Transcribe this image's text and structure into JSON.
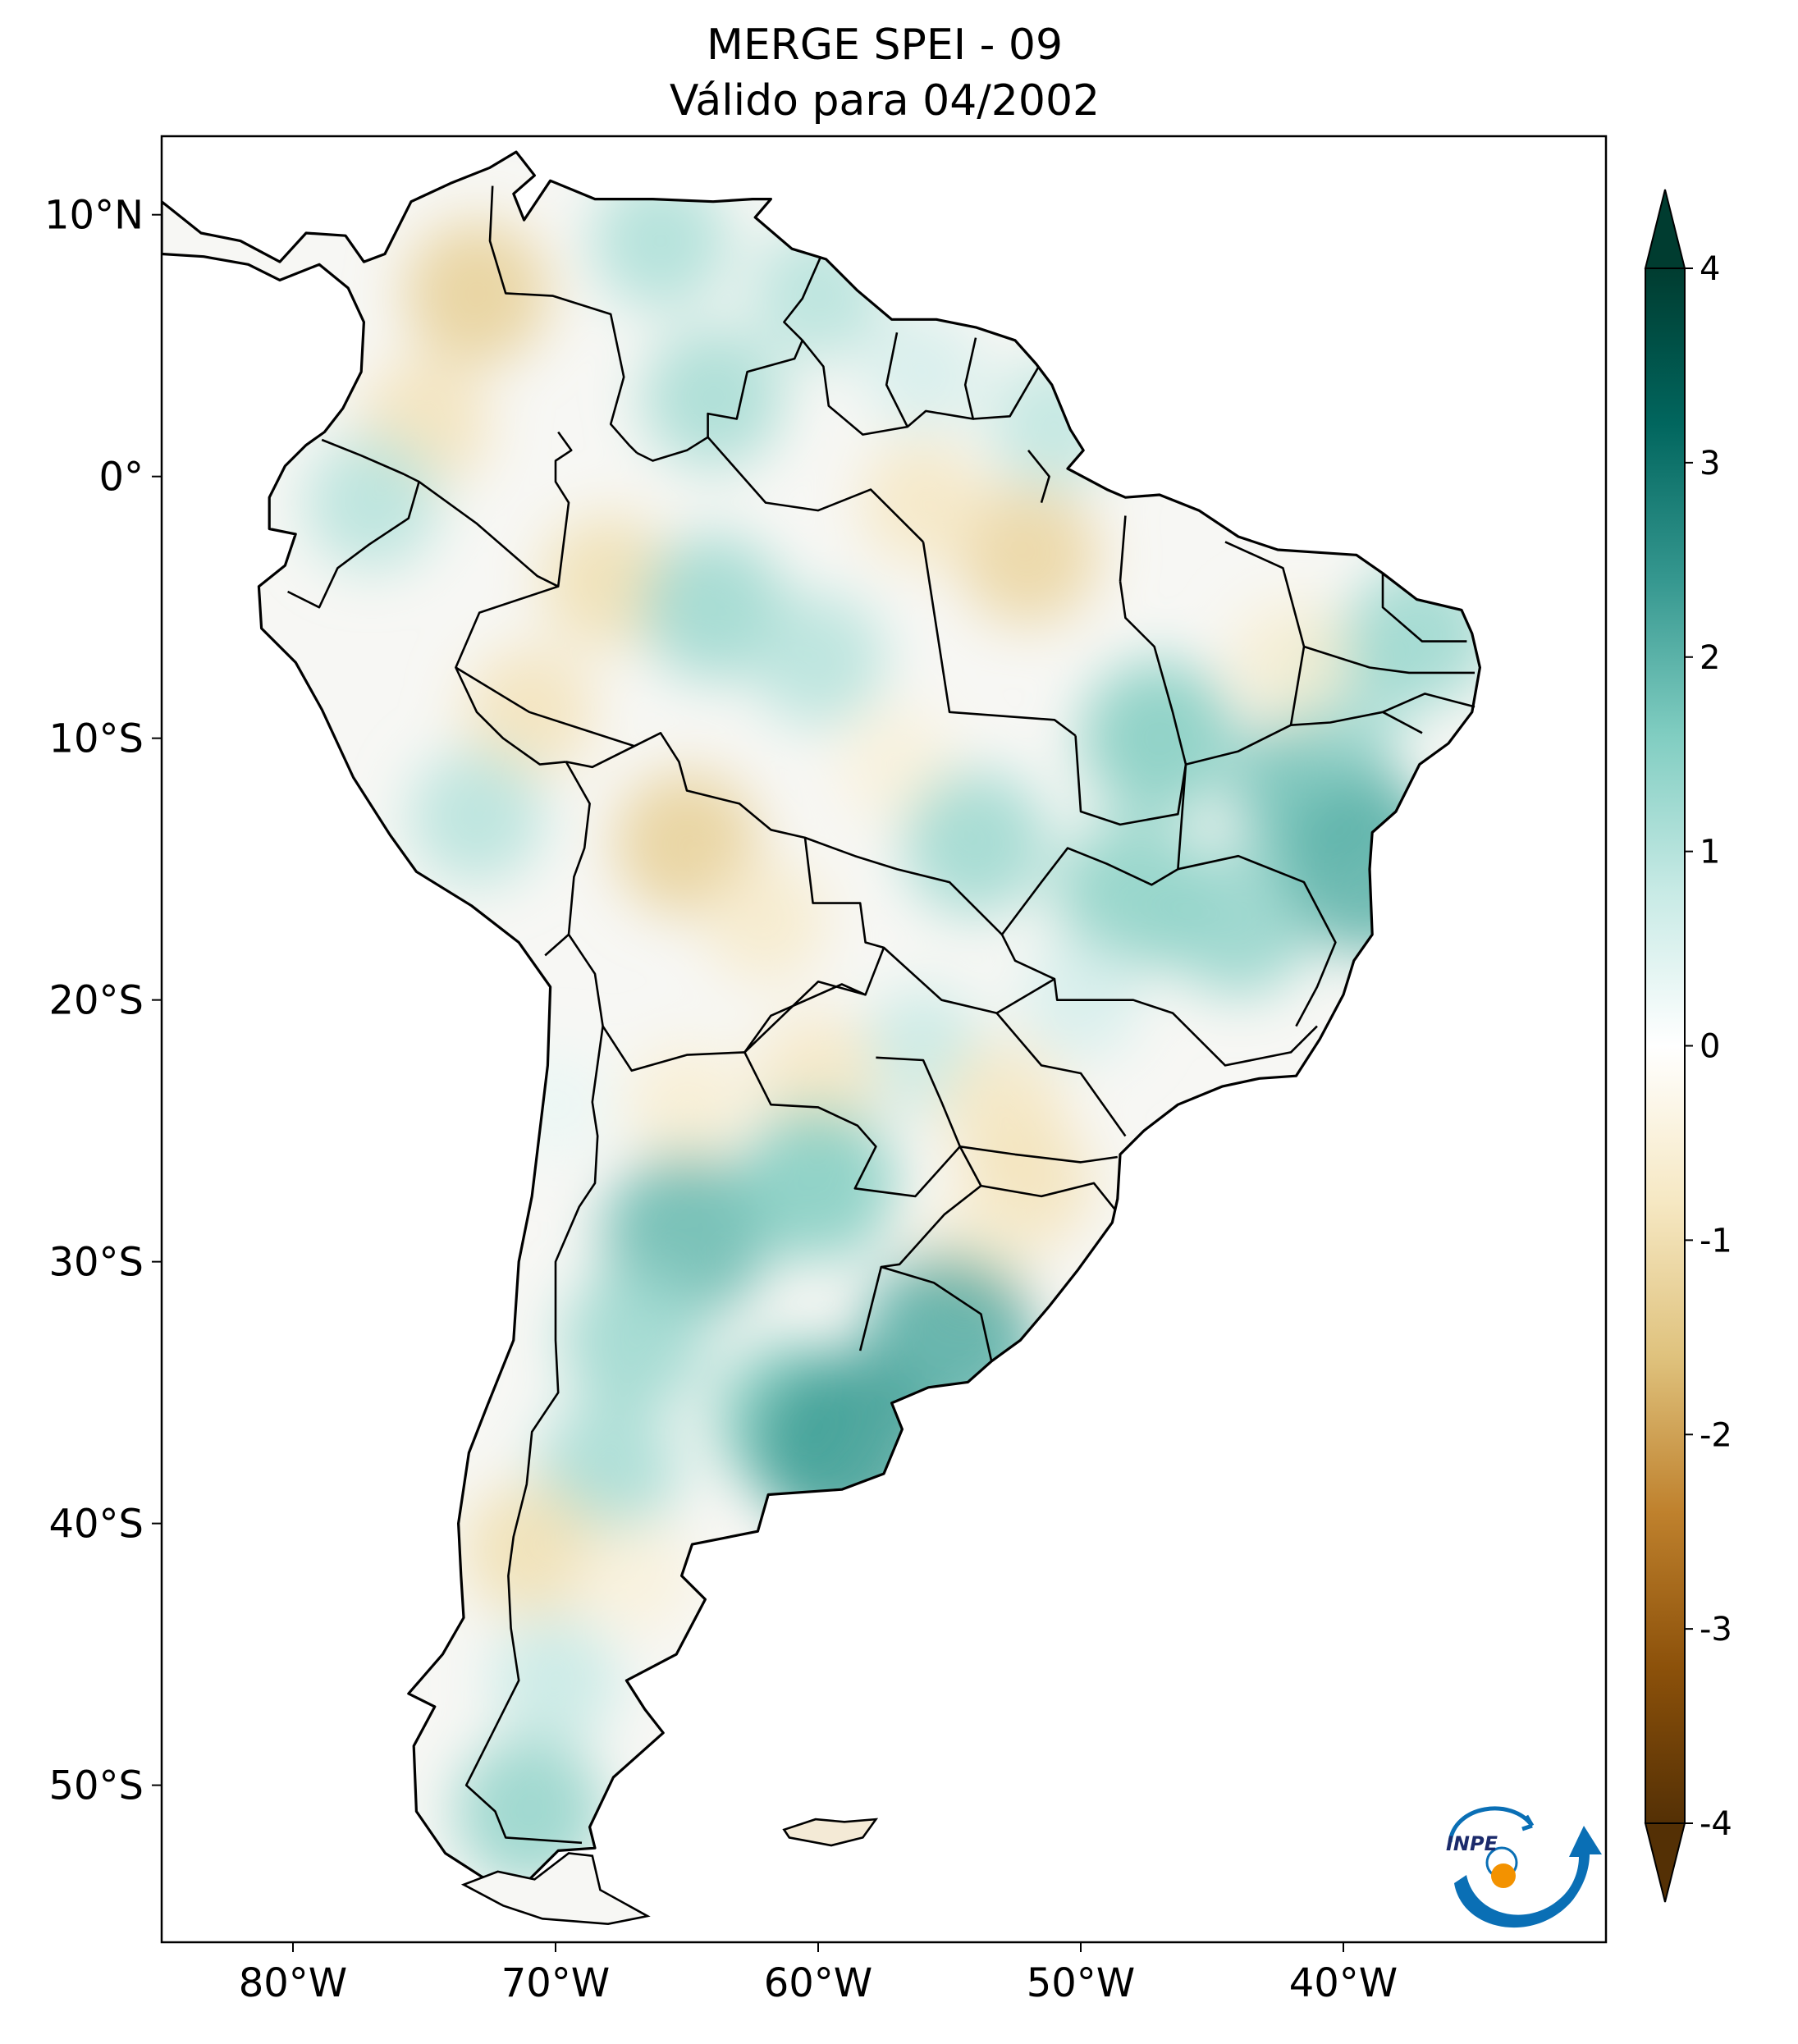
{
  "title": {
    "line1": "MERGE   SPEI - 09",
    "line2": "Válido para 04/2002"
  },
  "map": {
    "lon_range": [
      -85,
      -30
    ],
    "lat_range": [
      -56,
      13
    ],
    "lon_ticks": [
      {
        "value": -80,
        "label": "80°W"
      },
      {
        "value": -70,
        "label": "70°W"
      },
      {
        "value": -60,
        "label": "60°W"
      },
      {
        "value": -50,
        "label": "50°W"
      },
      {
        "value": -40,
        "label": "40°W"
      }
    ],
    "lat_ticks": [
      {
        "value": 10,
        "label": "10°N"
      },
      {
        "value": 0,
        "label": "0°"
      },
      {
        "value": -10,
        "label": "10°S"
      },
      {
        "value": -20,
        "label": "20°S"
      },
      {
        "value": -30,
        "label": "30°S"
      },
      {
        "value": -40,
        "label": "40°S"
      },
      {
        "value": -50,
        "label": "50°S"
      }
    ],
    "anomalies": [
      {
        "lon": -73,
        "lat": 7,
        "value": -1.3
      },
      {
        "lon": -75,
        "lat": 2,
        "value": -0.9
      },
      {
        "lon": -66,
        "lat": 9,
        "value": 1.1
      },
      {
        "lon": -60,
        "lat": 7,
        "value": 1.0
      },
      {
        "lon": -64,
        "lat": 3,
        "value": 1.2
      },
      {
        "lon": -56,
        "lat": 4,
        "value": 0.6
      },
      {
        "lon": -51,
        "lat": 2,
        "value": 0.9
      },
      {
        "lon": -77,
        "lat": -1,
        "value": 1.0
      },
      {
        "lon": -68,
        "lat": -4,
        "value": -1.0
      },
      {
        "lon": -64,
        "lat": -5,
        "value": 1.3
      },
      {
        "lon": -60,
        "lat": -7,
        "value": 1.0
      },
      {
        "lon": -52,
        "lat": -3,
        "value": -1.2
      },
      {
        "lon": -56,
        "lat": -1,
        "value": -0.8
      },
      {
        "lon": -71,
        "lat": -9,
        "value": -0.9
      },
      {
        "lon": -73,
        "lat": -13,
        "value": 1.0
      },
      {
        "lon": -65,
        "lat": -14,
        "value": -1.3
      },
      {
        "lon": -62,
        "lat": -17,
        "value": -0.7
      },
      {
        "lon": -57,
        "lat": -11,
        "value": -0.5
      },
      {
        "lon": -54,
        "lat": -14,
        "value": 1.3
      },
      {
        "lon": -47,
        "lat": -10,
        "value": 1.6
      },
      {
        "lon": -48,
        "lat": -16,
        "value": 1.5
      },
      {
        "lon": -44,
        "lat": -17,
        "value": 1.4
      },
      {
        "lon": -41,
        "lat": -12,
        "value": 1.8
      },
      {
        "lon": -40,
        "lat": -8,
        "value": 1.2
      },
      {
        "lon": -37,
        "lat": -6,
        "value": 1.3
      },
      {
        "lon": -39,
        "lat": -15,
        "value": 2.0
      },
      {
        "lon": -42,
        "lat": -7,
        "value": -0.6
      },
      {
        "lon": -56,
        "lat": -22,
        "value": 0.8
      },
      {
        "lon": -60,
        "lat": -23,
        "value": -0.8
      },
      {
        "lon": -53,
        "lat": -24,
        "value": -0.8
      },
      {
        "lon": -50,
        "lat": -20,
        "value": 0.6
      },
      {
        "lon": -52,
        "lat": -27,
        "value": -0.9
      },
      {
        "lon": -54,
        "lat": -30,
        "value": -0.6
      },
      {
        "lon": -55,
        "lat": -33,
        "value": 2.1
      },
      {
        "lon": -65,
        "lat": -24,
        "value": -0.6
      },
      {
        "lon": -65,
        "lat": -29,
        "value": 1.9
      },
      {
        "lon": -60,
        "lat": -27,
        "value": 1.6
      },
      {
        "lon": -67,
        "lat": -33,
        "value": 1.3
      },
      {
        "lon": -61,
        "lat": -36,
        "value": 1.6
      },
      {
        "lon": -59,
        "lat": -37,
        "value": 2.3
      },
      {
        "lon": -68,
        "lat": -38,
        "value": 1.2
      },
      {
        "lon": -71,
        "lat": -41,
        "value": -1.0
      },
      {
        "lon": -67,
        "lat": -42,
        "value": -0.5
      },
      {
        "lon": -70,
        "lat": -46,
        "value": 0.8
      },
      {
        "lon": -71,
        "lat": -51,
        "value": 1.4
      },
      {
        "lon": -70,
        "lat": -24,
        "value": 0.3
      },
      {
        "lon": -60,
        "lat": -51.5,
        "value": -0.6
      }
    ]
  },
  "colorbar": {
    "min": -4,
    "max": 4,
    "ticks": [
      {
        "value": 4,
        "label": "4"
      },
      {
        "value": 3,
        "label": "3"
      },
      {
        "value": 2,
        "label": "2"
      },
      {
        "value": 1,
        "label": "1"
      },
      {
        "value": 0,
        "label": "0"
      },
      {
        "value": -1,
        "label": "-1"
      },
      {
        "value": -2,
        "label": "-2"
      },
      {
        "value": -3,
        "label": "-3"
      },
      {
        "value": -4,
        "label": "-4"
      }
    ],
    "colors": [
      "#543005",
      "#8c510a",
      "#bf812d",
      "#dfc27d",
      "#f6e8c3",
      "#ffffff",
      "#c7eae5",
      "#80cdc1",
      "#35978f",
      "#01665e",
      "#003c30"
    ]
  },
  "logo": {
    "text": "INPE",
    "colors": [
      "#0a6fb5",
      "#f39200"
    ]
  }
}
